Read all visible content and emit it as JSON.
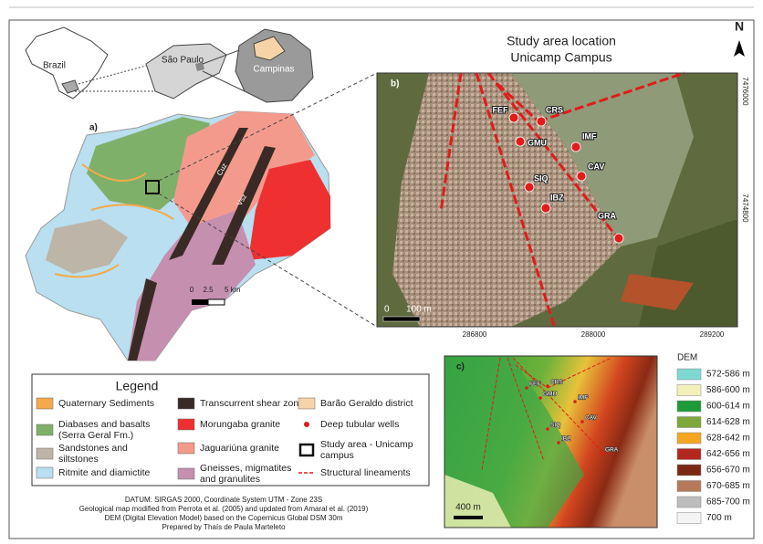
{
  "inset": {
    "country": "Brazil",
    "state": "São Paulo",
    "municipality": "Campinas"
  },
  "title": {
    "line1": "Study area location",
    "line2": "Unicamp Campus"
  },
  "north": "N",
  "panels": {
    "a": "a)",
    "b": "b)",
    "c": "c)"
  },
  "map_a": {
    "scale": [
      "0",
      "2.5",
      "5 km"
    ],
    "zones": [
      "Cuz",
      "Vsz"
    ]
  },
  "map_b": {
    "northings": [
      "7476000",
      "7474800"
    ],
    "eastings": [
      "286800",
      "288000",
      "289200"
    ],
    "scale": [
      "0",
      "100 m"
    ],
    "wells": [
      "FEF",
      "CRS",
      "GMU",
      "IMF",
      "SIQ",
      "CAV",
      "IBZ",
      "GRA"
    ]
  },
  "map_c": {
    "wells": [
      "FEF",
      "CRS",
      "GMU",
      "IMF",
      "SIQ",
      "CAV",
      "IBZ",
      "GRA"
    ],
    "scale": "400 m"
  },
  "dem_legend": {
    "title": "DEM",
    "items": [
      {
        "label": "572-586 m",
        "color": "#7fd8d2"
      },
      {
        "label": "586-600 m",
        "color": "#f2f1b8"
      },
      {
        "label": "600-614 m",
        "color": "#1e9a36"
      },
      {
        "label": "614-628 m",
        "color": "#7ea83a"
      },
      {
        "label": "628-642 m",
        "color": "#f5a623"
      },
      {
        "label": "642-656 m",
        "color": "#b3271e"
      },
      {
        "label": "656-670 m",
        "color": "#7a2814"
      },
      {
        "label": "670-685 m",
        "color": "#b5795a"
      },
      {
        "label": "685-700 m",
        "color": "#bdbdbd"
      },
      {
        "label": "700 m",
        "color": "#f4f4f4"
      }
    ]
  },
  "legend": {
    "title": "Legend",
    "items": [
      {
        "lines": [
          "Quaternary Sediments"
        ],
        "color": "#f4a94a"
      },
      {
        "lines": [
          "Diabases and basalts",
          "(Serra Geral Fm.)"
        ],
        "color": "#7fb069"
      },
      {
        "lines": [
          "Sandstones and",
          "siltstones"
        ],
        "color": "#bdb5a8"
      },
      {
        "lines": [
          "Ritmite and diamictite"
        ],
        "color": "#b9dff0"
      },
      {
        "lines": [
          "Transcurrent shear zones"
        ],
        "color": "#3a2a25"
      },
      {
        "lines": [
          "Morungaba granite"
        ],
        "color": "#ee3030"
      },
      {
        "lines": [
          "Jaguariúna granite"
        ],
        "color": "#f49a8c"
      },
      {
        "lines": [
          "Gneisses, migmatites",
          "and granulites"
        ],
        "color": "#c58fb0"
      },
      {
        "lines": [
          "Barão Geraldo district"
        ],
        "color": "#f6d4a8"
      },
      {
        "lines": [
          "Deep tubular wells"
        ],
        "color": "#e21b1b"
      },
      {
        "lines": [
          "Study area - Unicamp",
          "campus"
        ],
        "color": "#111111"
      },
      {
        "lines": [
          "Structural lineaments"
        ],
        "color": "#e21b1b"
      }
    ]
  },
  "footer": [
    "DATUM: SIRGAS 2000, Coordinate System UTM - Zone 23S",
    "Geological map modified from Perrota et al. (2005) and updated from Amaral et al. (2019)",
    "DEM (Digital Elevation Model) based on the Copernicus Global DSM 30m",
    "Prepared by Thaís de Paula Marteleto"
  ]
}
